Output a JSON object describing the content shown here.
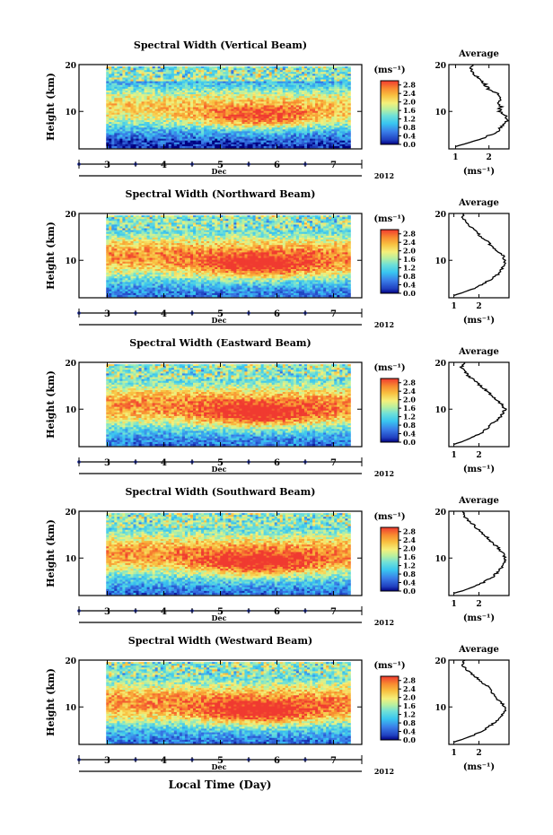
{
  "figure": {
    "xlabel": "Local Time (Day)",
    "month_label": "Dec",
    "year_label": "2012"
  },
  "chart_data": [
    {
      "type": "heatmap",
      "title": "Spectral Width (Vertical Beam)",
      "ylabel": "Height (km)",
      "ylim": [
        2,
        20
      ],
      "yticks": [
        20,
        10
      ],
      "xlim": [
        2.5,
        7.5
      ],
      "xticks": [
        3,
        4,
        5,
        6,
        7
      ],
      "colorbar": {
        "unit": "(ms⁻¹)",
        "ticks": [
          "0.0",
          "0.4",
          "0.8",
          "1.2",
          "1.6",
          "2.0",
          "2.4",
          "2.8"
        ],
        "range": [
          0,
          3.0
        ]
      },
      "average_profile": {
        "title": "Average",
        "xlabel": "(ms⁻¹)",
        "xticks": [
          1,
          2
        ],
        "xlim": [
          0.8,
          2.6
        ],
        "height": [
          2.5,
          3,
          4,
          5,
          6,
          7,
          8,
          9,
          10,
          11,
          12,
          13,
          14,
          15,
          16,
          17,
          18,
          19,
          20
        ],
        "value": [
          1.0,
          1.25,
          1.7,
          2.05,
          2.3,
          2.4,
          2.55,
          2.5,
          2.3,
          2.35,
          2.25,
          2.4,
          2.2,
          1.95,
          1.85,
          1.7,
          1.55,
          1.45,
          1.5
        ]
      }
    },
    {
      "type": "heatmap",
      "title": "Spectral Width (Northward Beam)",
      "ylabel": "Height (km)",
      "ylim": [
        2,
        20
      ],
      "yticks": [
        20,
        10
      ],
      "xlim": [
        2.5,
        7.5
      ],
      "xticks": [
        3,
        4,
        5,
        6,
        7
      ],
      "colorbar": {
        "unit": "(ms⁻¹)",
        "ticks": [
          "0.0",
          "0.4",
          "0.8",
          "1.2",
          "1.6",
          "2.0",
          "2.4",
          "2.8"
        ],
        "range": [
          0,
          3.0
        ]
      },
      "average_profile": {
        "title": "Average",
        "xlabel": "(ms⁻¹)",
        "xticks": [
          1,
          2
        ],
        "xlim": [
          0.8,
          3.2
        ],
        "height": [
          2.5,
          3,
          4,
          5,
          6,
          7,
          8,
          9,
          10,
          11,
          12,
          13,
          14,
          15,
          16,
          17,
          18,
          19,
          20
        ],
        "value": [
          1.0,
          1.3,
          1.8,
          2.2,
          2.5,
          2.75,
          2.9,
          3.0,
          3.05,
          2.95,
          2.7,
          2.5,
          2.35,
          2.1,
          1.9,
          1.7,
          1.5,
          1.35,
          1.4
        ]
      }
    },
    {
      "type": "heatmap",
      "title": "Spectral Width (Eastward Beam)",
      "ylabel": "Height (km)",
      "ylim": [
        2,
        20
      ],
      "yticks": [
        20,
        10
      ],
      "xlim": [
        2.5,
        7.5
      ],
      "xticks": [
        3,
        4,
        5,
        6,
        7
      ],
      "colorbar": {
        "unit": "(ms⁻¹)",
        "ticks": [
          "0.0",
          "0.4",
          "0.8",
          "1.2",
          "1.6",
          "2.0",
          "2.4",
          "2.8"
        ],
        "range": [
          0,
          3.0
        ]
      },
      "average_profile": {
        "title": "Average",
        "xlabel": "(ms⁻¹)",
        "xticks": [
          1,
          2
        ],
        "xlim": [
          0.8,
          3.2
        ],
        "height": [
          2.5,
          3,
          4,
          5,
          6,
          7,
          8,
          9,
          10,
          11,
          12,
          13,
          14,
          15,
          16,
          17,
          18,
          19,
          20
        ],
        "value": [
          1.0,
          1.3,
          1.75,
          2.15,
          2.35,
          2.55,
          2.8,
          2.95,
          3.05,
          2.9,
          2.7,
          2.5,
          2.3,
          2.05,
          1.85,
          1.6,
          1.45,
          1.3,
          1.4
        ]
      }
    },
    {
      "type": "heatmap",
      "title": "Spectral Width (Southward Beam)",
      "ylabel": "Height (km)",
      "ylim": [
        2,
        20
      ],
      "yticks": [
        20,
        10
      ],
      "xlim": [
        2.5,
        7.5
      ],
      "xticks": [
        3,
        4,
        5,
        6,
        7
      ],
      "colorbar": {
        "unit": "(ms⁻¹)",
        "ticks": [
          "0.0",
          "0.4",
          "0.8",
          "1.2",
          "1.6",
          "2.0",
          "2.4",
          "2.8"
        ],
        "range": [
          0,
          3.0
        ]
      },
      "average_profile": {
        "title": "Average",
        "xlabel": "(ms⁻¹)",
        "xticks": [
          1,
          2
        ],
        "xlim": [
          0.8,
          3.2
        ],
        "height": [
          2.5,
          3,
          4,
          5,
          6,
          7,
          8,
          9,
          10,
          11,
          12,
          13,
          14,
          15,
          16,
          17,
          18,
          19,
          20
        ],
        "value": [
          1.0,
          1.35,
          1.85,
          2.25,
          2.55,
          2.75,
          2.9,
          3.0,
          3.05,
          2.95,
          2.8,
          2.6,
          2.4,
          2.2,
          2.0,
          1.8,
          1.6,
          1.4,
          1.35
        ]
      }
    },
    {
      "type": "heatmap",
      "title": "Spectral Width (Westward Beam)",
      "ylabel": "Height (km)",
      "ylim": [
        2,
        20
      ],
      "yticks": [
        20,
        10
      ],
      "xlim": [
        2.5,
        7.5
      ],
      "xticks": [
        3,
        4,
        5,
        6,
        7
      ],
      "colorbar": {
        "unit": "(ms⁻¹)",
        "ticks": [
          "0.0",
          "0.4",
          "0.8",
          "1.2",
          "1.6",
          "2.0",
          "2.4",
          "2.8"
        ],
        "range": [
          0,
          3.0
        ]
      },
      "average_profile": {
        "title": "Average",
        "xlabel": "(ms⁻¹)",
        "xticks": [
          1,
          2
        ],
        "xlim": [
          0.8,
          3.2
        ],
        "height": [
          2.5,
          3,
          4,
          5,
          6,
          7,
          8,
          9,
          10,
          11,
          12,
          13,
          14,
          15,
          16,
          17,
          18,
          19,
          20
        ],
        "value": [
          1.0,
          1.3,
          1.8,
          2.2,
          2.45,
          2.7,
          2.9,
          3.0,
          3.05,
          2.85,
          2.65,
          2.55,
          2.45,
          2.2,
          1.95,
          1.75,
          1.5,
          1.35,
          1.45
        ]
      }
    }
  ]
}
